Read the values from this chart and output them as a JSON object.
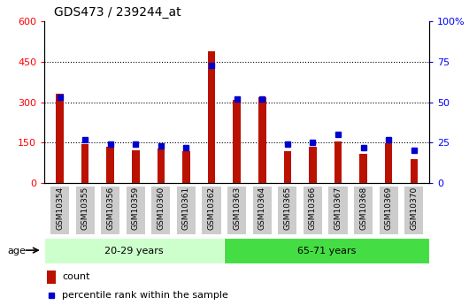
{
  "title": "GDS473 / 239244_at",
  "samples": [
    "GSM10354",
    "GSM10355",
    "GSM10356",
    "GSM10359",
    "GSM10360",
    "GSM10361",
    "GSM10362",
    "GSM10363",
    "GSM10364",
    "GSM10365",
    "GSM10366",
    "GSM10367",
    "GSM10368",
    "GSM10369",
    "GSM10370"
  ],
  "counts": [
    330,
    143,
    133,
    122,
    128,
    118,
    488,
    308,
    318,
    118,
    133,
    153,
    108,
    148,
    88
  ],
  "percentiles": [
    53,
    27,
    24,
    24,
    23,
    22,
    73,
    52,
    52,
    24,
    25,
    30,
    22,
    27,
    20
  ],
  "groups": [
    {
      "label": "20-29 years",
      "start": 0,
      "end": 7,
      "color": "#ccffcc"
    },
    {
      "label": "65-71 years",
      "start": 7,
      "end": 15,
      "color": "#44dd44"
    }
  ],
  "ylim_left": [
    0,
    600
  ],
  "ylim_right": [
    0,
    100
  ],
  "yticks_left": [
    0,
    150,
    300,
    450,
    600
  ],
  "yticks_right": [
    0,
    25,
    50,
    75,
    100
  ],
  "yticklabels_right": [
    "0",
    "25",
    "50",
    "75",
    "100%"
  ],
  "bar_color": "#bb1100",
  "dot_color": "#0000cc",
  "xtick_bg": "#cccccc",
  "age_label": "age",
  "legend_count": "count",
  "legend_percentile": "percentile rank within the sample",
  "grid_yticks": [
    150,
    300,
    450
  ]
}
